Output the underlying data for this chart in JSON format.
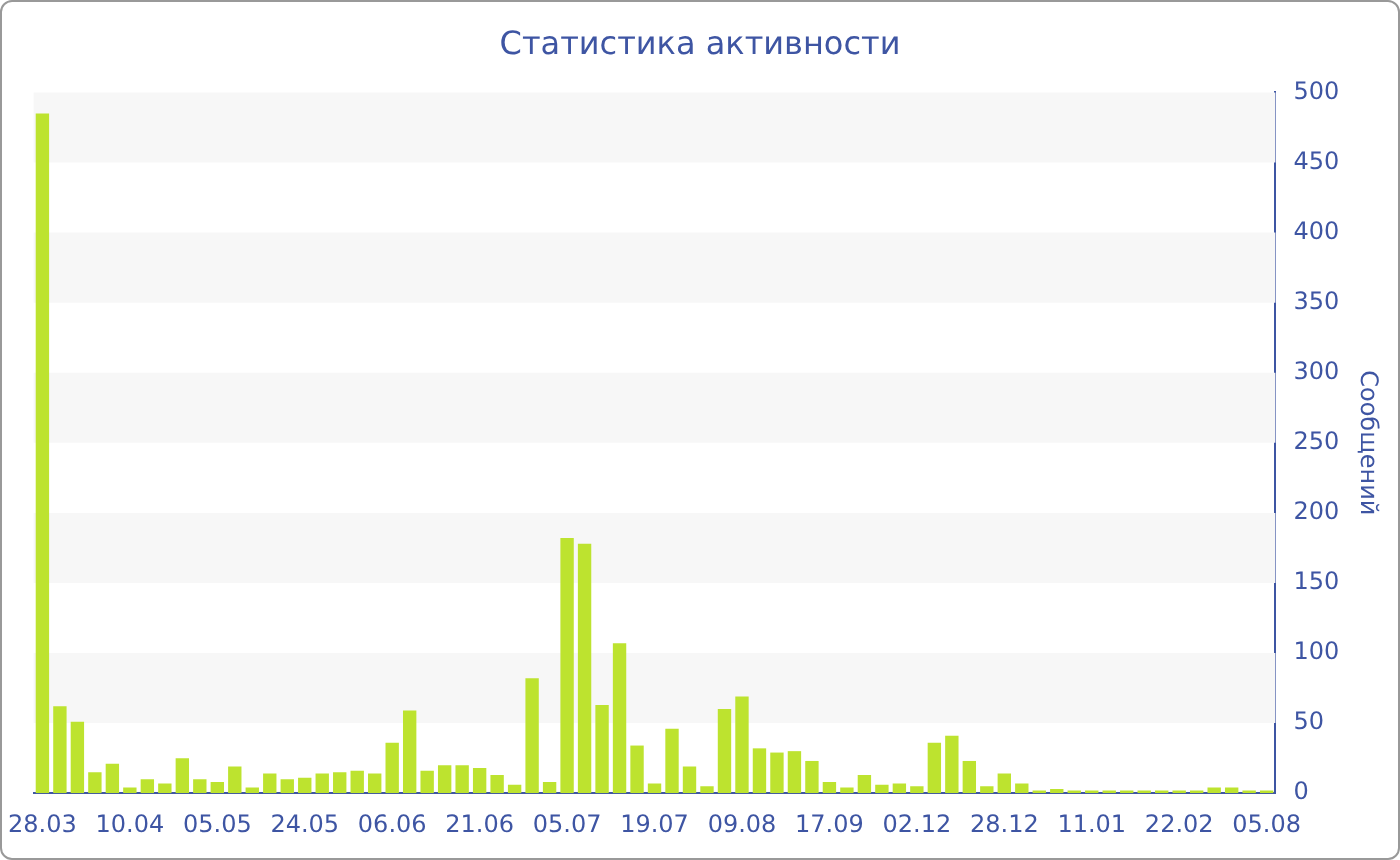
{
  "chart_data": {
    "type": "bar",
    "title": "Статистика активности",
    "ylabel": "Сообщений",
    "categories": [
      "28.03",
      null,
      null,
      null,
      null,
      "10.04",
      null,
      null,
      null,
      null,
      "05.05",
      null,
      null,
      null,
      null,
      "24.05",
      null,
      null,
      null,
      null,
      "06.06",
      null,
      null,
      null,
      null,
      "21.06",
      null,
      null,
      null,
      null,
      "05.07",
      null,
      null,
      null,
      null,
      "19.07",
      null,
      null,
      null,
      null,
      "09.08",
      null,
      null,
      null,
      null,
      "17.09",
      null,
      null,
      null,
      null,
      "02.12",
      null,
      null,
      null,
      null,
      "28.12",
      null,
      null,
      null,
      null,
      "11.01",
      null,
      null,
      null,
      null,
      "22.02",
      null,
      null,
      null,
      null,
      "05.08"
    ],
    "values": [
      485,
      62,
      51,
      15,
      21,
      4,
      10,
      7,
      25,
      10,
      8,
      19,
      4,
      14,
      10,
      11,
      14,
      15,
      16,
      14,
      36,
      59,
      16,
      20,
      20,
      18,
      13,
      6,
      82,
      8,
      182,
      178,
      63,
      107,
      34,
      7,
      46,
      19,
      5,
      60,
      69,
      32,
      29,
      30,
      23,
      8,
      4,
      13,
      6,
      7,
      5,
      36,
      41,
      23,
      5,
      14,
      7,
      2,
      3,
      2,
      2,
      2,
      2,
      2,
      2,
      2,
      2,
      4,
      4,
      2,
      2
    ],
    "color": "#bde32f",
    "ylim": [
      0,
      500
    ],
    "yticks": [
      0,
      50,
      100,
      150,
      200,
      250,
      300,
      350,
      400,
      450,
      500
    ],
    "bands": [
      {
        "axis": "y",
        "from": 50,
        "to": 100,
        "color": "#f7f7f7"
      },
      {
        "axis": "y",
        "from": 150,
        "to": 200,
        "color": "#f7f7f7"
      },
      {
        "axis": "y",
        "from": 250,
        "to": 300,
        "color": "#f7f7f7"
      },
      {
        "axis": "y",
        "from": 350,
        "to": 400,
        "color": "#f7f7f7"
      },
      {
        "axis": "y",
        "from": 450,
        "to": 500,
        "color": "#f7f7f7"
      }
    ],
    "grid": false,
    "legend": false
  }
}
